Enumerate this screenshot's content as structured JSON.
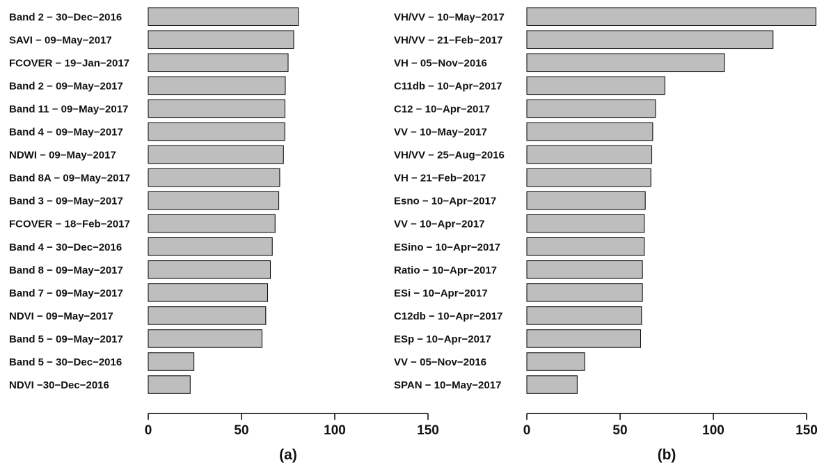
{
  "colors": {
    "bar_fill": "#bebebe",
    "bar_stroke": "#000000",
    "axis": "#000000",
    "text": "#111111"
  },
  "chart_data": [
    {
      "type": "bar",
      "orientation": "horizontal",
      "panel_label": "(a)",
      "categories": [
        "Band 2 − 30−Dec−2016",
        "SAVI − 09−May−2017",
        "FCOVER − 19−Jan−2017",
        "Band 2 − 09−May−2017",
        "Band 11 − 09−May−2017",
        "Band 4 − 09−May−2017",
        "NDWI − 09−May−2017",
        "Band 8A − 09−May−2017",
        "Band 3 − 09−May−2017",
        "FCOVER − 18−Feb−2017",
        "Band 4 − 30−Dec−2016",
        "Band 8 − 09−May−2017",
        "Band 7 − 09−May−2017",
        "NDVI − 09−May−2017",
        "Band 5 − 09−May−2017",
        "Band 5 − 30−Dec−2016",
        "NDVI −30−Dec−2016"
      ],
      "values": [
        80.5,
        78,
        75,
        73.5,
        73.3,
        73.2,
        72.5,
        70.5,
        70,
        68,
        66.5,
        65.5,
        64,
        63,
        61,
        24.5,
        22.5
      ],
      "xlim": [
        0,
        150
      ],
      "xticks": [
        "0",
        "50",
        "100",
        "150"
      ],
      "tick_values": [
        0,
        50,
        100,
        150
      ]
    },
    {
      "type": "bar",
      "orientation": "horizontal",
      "panel_label": "(b)",
      "categories": [
        "VH/VV − 10−May−2017",
        "VH/VV − 21−Feb−2017",
        "VH − 05−Nov−2016",
        "C11db  − 10−Apr−2017",
        "C12 − 10−Apr−2017",
        "VV − 10−May−2017",
        "VH/VV  − 25−Aug−2016",
        "VH − 21−Feb−2017",
        "Esno − 10−Apr−2017",
        "VV − 10−Apr−2017",
        "ESino − 10−Apr−2017",
        "Ratio − 10−Apr−2017",
        "ESi − 10−Apr−2017",
        "C12db − 10−Apr−2017",
        "ESp − 10−Apr−2017",
        "VV − 05−Nov−2016",
        "SPAN − 10−May−2017"
      ],
      "values": [
        155,
        132,
        106,
        74,
        69,
        67.5,
        67,
        66.5,
        63.5,
        63,
        63,
        62,
        62,
        61.5,
        61,
        31,
        27
      ],
      "xlim": [
        0,
        150
      ],
      "xticks": [
        "0",
        "50",
        "100",
        "150"
      ],
      "tick_values": [
        0,
        50,
        100,
        150
      ]
    }
  ]
}
